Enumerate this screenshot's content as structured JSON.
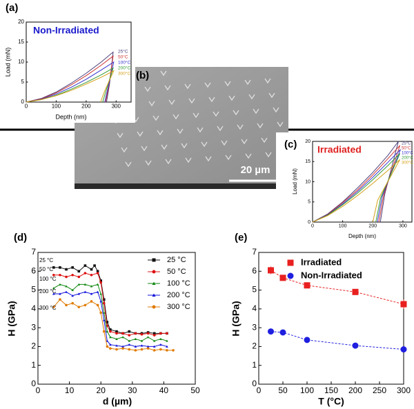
{
  "chart_data": [
    {
      "type": "line",
      "panel_label": "(a)",
      "title": "Non-Irradiated",
      "title_color": "#1a1acc",
      "x_label": "Depth (nm)",
      "y_label": "Load (mN)",
      "xlim": [
        0,
        350
      ],
      "ylim": [
        0,
        20
      ],
      "xticks": [
        0,
        100,
        200,
        300
      ],
      "yticks": [
        0,
        5,
        10,
        15,
        20
      ],
      "legend": "right",
      "series": [
        {
          "name": "25°C",
          "color": "#4a3f7a",
          "x": [
            0,
            50,
            100,
            150,
            200,
            250,
            290,
            278,
            268
          ],
          "values": [
            0,
            0.9,
            2.5,
            4.7,
            7.2,
            10,
            12.5,
            4.5,
            0
          ]
        },
        {
          "name": "50°C",
          "color": "#cc3333",
          "x": [
            0,
            50,
            100,
            150,
            200,
            250,
            290,
            276,
            265
          ],
          "values": [
            0,
            0.8,
            2.3,
            4.3,
            6.6,
            9.2,
            11.5,
            4.1,
            0
          ]
        },
        {
          "name": "100°C",
          "color": "#3333cc",
          "x": [
            0,
            50,
            100,
            150,
            200,
            250,
            292,
            273,
            262
          ],
          "values": [
            0,
            0.7,
            2,
            3.7,
            5.7,
            8,
            10,
            3.6,
            0
          ]
        },
        {
          "name": "200°C",
          "color": "#339933",
          "x": [
            0,
            50,
            100,
            150,
            200,
            250,
            290,
            267,
            255
          ],
          "values": [
            0,
            0.6,
            1.7,
            3.2,
            4.9,
            6.8,
            8.5,
            3,
            0
          ]
        },
        {
          "name": "300°C",
          "color": "#d4a017",
          "x": [
            0,
            50,
            100,
            150,
            200,
            250,
            292,
            262,
            248
          ],
          "values": [
            0,
            0.6,
            1.6,
            2.9,
            4.5,
            6.2,
            7.8,
            2.8,
            0
          ]
        }
      ]
    },
    {
      "type": "image",
      "panel_label": "(b)",
      "scale_bar": "20 µm"
    },
    {
      "type": "line",
      "panel_label": "(c)",
      "title": "Irradiated",
      "title_color": "#e02020",
      "x_label": "Depth (nm)",
      "y_label": "Load (mN)",
      "xlim": [
        0,
        330
      ],
      "ylim": [
        0,
        20
      ],
      "xticks": [
        0,
        100,
        200,
        300
      ],
      "yticks": [
        0,
        5,
        10,
        15,
        20
      ],
      "legend": "right",
      "series": [
        {
          "name": "25°C",
          "color": "#4a3f7a",
          "x": [
            0,
            50,
            100,
            150,
            200,
            250,
            285,
            240,
            225
          ],
          "values": [
            0,
            2,
            5,
            8.5,
            12.3,
            16.5,
            20,
            7,
            0
          ]
        },
        {
          "name": "50°C",
          "color": "#cc3333",
          "x": [
            0,
            50,
            100,
            150,
            200,
            250,
            290,
            236,
            220
          ],
          "values": [
            0,
            1.9,
            4.8,
            8,
            11.7,
            15.7,
            19,
            6.6,
            0
          ]
        },
        {
          "name": "100°C",
          "color": "#3333cc",
          "x": [
            0,
            50,
            100,
            150,
            200,
            250,
            292,
            231,
            215
          ],
          "values": [
            0,
            1.8,
            4.5,
            7.6,
            11.1,
            14.8,
            18,
            6.3,
            0
          ]
        },
        {
          "name": "200°C",
          "color": "#339933",
          "x": [
            0,
            50,
            100,
            150,
            200,
            250,
            290,
            226,
            210
          ],
          "values": [
            0,
            1.7,
            4.3,
            7.2,
            10.5,
            14,
            17,
            6,
            0
          ]
        },
        {
          "name": "300°C",
          "color": "#d4a017",
          "x": [
            0,
            50,
            100,
            150,
            200,
            250,
            290,
            216,
            200
          ],
          "values": [
            0,
            1.6,
            3.9,
            6.6,
            9.6,
            12.8,
            15.5,
            5.4,
            0
          ]
        }
      ]
    },
    {
      "type": "line",
      "panel_label": "(d)",
      "x_label": "d (µm)",
      "y_label": "H (GPa)",
      "xlim": [
        0,
        50
      ],
      "ylim": [
        0,
        7
      ],
      "xticks": [
        0,
        10,
        20,
        30,
        40,
        50
      ],
      "yticks": [
        0,
        1,
        2,
        3,
        4,
        5,
        6,
        7
      ],
      "legend": "upper right",
      "markers": true,
      "annotations": [
        "25 °C",
        "50 °C",
        "100 °C",
        "200 °C",
        "300 °C"
      ],
      "series": [
        {
          "name": "25 °C",
          "color": "#111111",
          "marker": "square",
          "x": [
            5,
            7,
            9,
            11,
            13,
            15,
            17,
            18,
            19,
            20,
            21,
            22,
            23,
            25,
            27,
            29,
            31,
            33,
            35,
            37,
            39,
            41
          ],
          "values": [
            6.2,
            6.2,
            6.1,
            6.2,
            6.0,
            6.3,
            6.1,
            6.3,
            6.0,
            5.5,
            4.5,
            3.3,
            2.9,
            2.8,
            2.7,
            2.8,
            2.7,
            2.7,
            2.75,
            2.7,
            2.7,
            2.7
          ]
        },
        {
          "name": "50 °C",
          "color": "#dd1111",
          "marker": "circle",
          "x": [
            5,
            7,
            9,
            11,
            13,
            15,
            17,
            19,
            20,
            21,
            22,
            23,
            25,
            27,
            29,
            31,
            33,
            35,
            37,
            39,
            41
          ],
          "values": [
            5.8,
            5.8,
            5.7,
            5.8,
            5.7,
            5.9,
            5.8,
            5.9,
            5.4,
            4.3,
            3.1,
            2.8,
            2.7,
            2.7,
            2.6,
            2.7,
            2.65,
            2.7,
            2.6,
            2.7,
            2.7
          ]
        },
        {
          "name": "100 °C",
          "color": "#118811",
          "marker": "triangle",
          "x": [
            5,
            7,
            9,
            11,
            13,
            15,
            17,
            19,
            20,
            21,
            22,
            23,
            25,
            27,
            29,
            31,
            33,
            35,
            37,
            39,
            41
          ],
          "values": [
            5.1,
            5.3,
            5.2,
            5.0,
            5.3,
            5.3,
            5.2,
            5.3,
            4.8,
            3.8,
            2.8,
            2.5,
            2.4,
            2.5,
            2.3,
            2.4,
            2.3,
            2.5,
            2.3,
            2.4,
            2.3
          ]
        },
        {
          "name": "200 °C",
          "color": "#1111dd",
          "marker": "triangle",
          "x": [
            5,
            7,
            9,
            11,
            13,
            15,
            17,
            19,
            20,
            21,
            22,
            23,
            25,
            27,
            29,
            31,
            33,
            35,
            37,
            39,
            41
          ],
          "values": [
            4.8,
            4.8,
            4.9,
            4.7,
            4.8,
            4.9,
            4.8,
            4.9,
            4.4,
            3.4,
            2.3,
            2.1,
            2.05,
            2.0,
            2.1,
            2.0,
            2.05,
            2.0,
            2.0,
            2.1,
            2.0
          ]
        },
        {
          "name": "300 °C",
          "color": "#e07b00",
          "marker": "circle",
          "x": [
            5,
            7,
            9,
            11,
            13,
            15,
            17,
            19,
            20,
            21,
            22,
            23,
            25,
            27,
            29,
            31,
            33,
            35,
            37,
            39,
            41,
            43
          ],
          "values": [
            4.1,
            4.5,
            4.2,
            4.3,
            4.1,
            4.2,
            4.4,
            4.2,
            3.8,
            2.8,
            2.0,
            1.9,
            1.85,
            1.9,
            1.85,
            1.8,
            1.85,
            1.9,
            1.8,
            1.85,
            1.8,
            1.8
          ]
        }
      ]
    },
    {
      "type": "scatter",
      "panel_label": "(e)",
      "x_label": "T (°C)",
      "y_label": "H (GPa)",
      "xlim": [
        0,
        300
      ],
      "ylim": [
        0,
        7
      ],
      "xticks": [
        0,
        50,
        100,
        150,
        200,
        250,
        300
      ],
      "yticks": [
        0,
        1,
        2,
        3,
        4,
        5,
        6,
        7
      ],
      "legend": "upper center",
      "x": [
        25,
        50,
        100,
        200,
        300
      ],
      "series": [
        {
          "name": "Irradiated",
          "color": "#e82020",
          "marker": "square",
          "values": [
            6.05,
            5.65,
            5.25,
            4.9,
            4.25
          ],
          "errors": [
            0.2,
            0.1,
            0.1,
            0.1,
            0.25
          ]
        },
        {
          "name": "Non-Irradiated",
          "color": "#1f1fe0",
          "marker": "circle",
          "values": [
            2.8,
            2.75,
            2.35,
            2.05,
            1.85
          ]
        }
      ]
    }
  ]
}
